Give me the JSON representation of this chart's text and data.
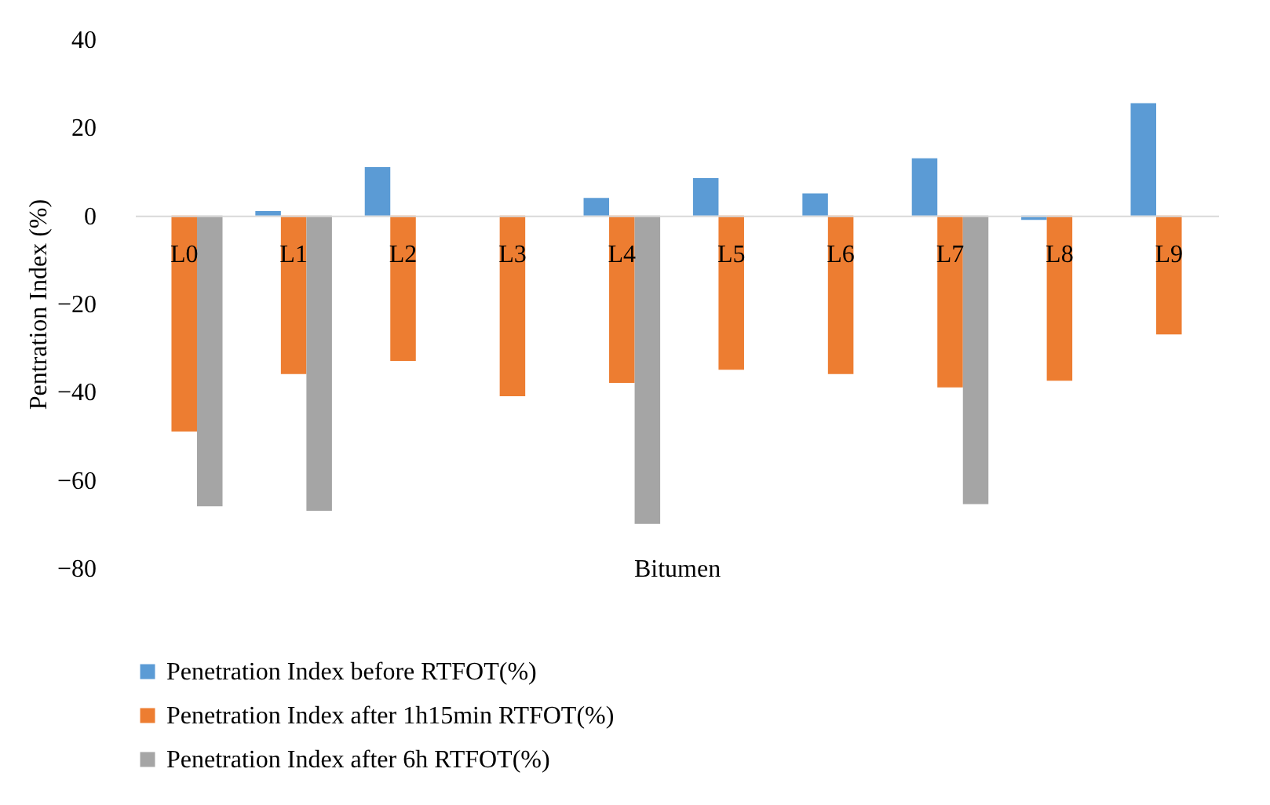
{
  "chart_data": {
    "type": "bar",
    "xlabel": "Bitumen",
    "ylabel": "Pentration Index  (%)",
    "categories": [
      "L0",
      "L1",
      "L2",
      "L3",
      "L4",
      "L5",
      "L6",
      "L7",
      "L8",
      "L9"
    ],
    "series": [
      {
        "name": "Penetration Index before RTFOT(%)",
        "color": "#5b9bd5",
        "values": [
          null,
          1,
          11,
          null,
          4,
          8.5,
          5,
          13,
          -1,
          25.5
        ]
      },
      {
        "name": "Penetration Index after 1h15min RTFOT(%)",
        "color": "#ed7d31",
        "values": [
          -49,
          -36,
          -33,
          -41,
          -38,
          -35,
          -36,
          -39,
          -37.5,
          -27
        ]
      },
      {
        "name": "Penetration Index after 6h RTFOT(%)",
        "color": "#a5a5a5",
        "values": [
          -66,
          -67,
          null,
          null,
          -70,
          null,
          null,
          -65.5,
          null,
          null
        ]
      }
    ],
    "ylim": [
      -80,
      40
    ],
    "yticks": [
      -80,
      -60,
      -40,
      -20,
      0,
      20,
      40
    ],
    "grid": false,
    "legend": "bottom"
  }
}
